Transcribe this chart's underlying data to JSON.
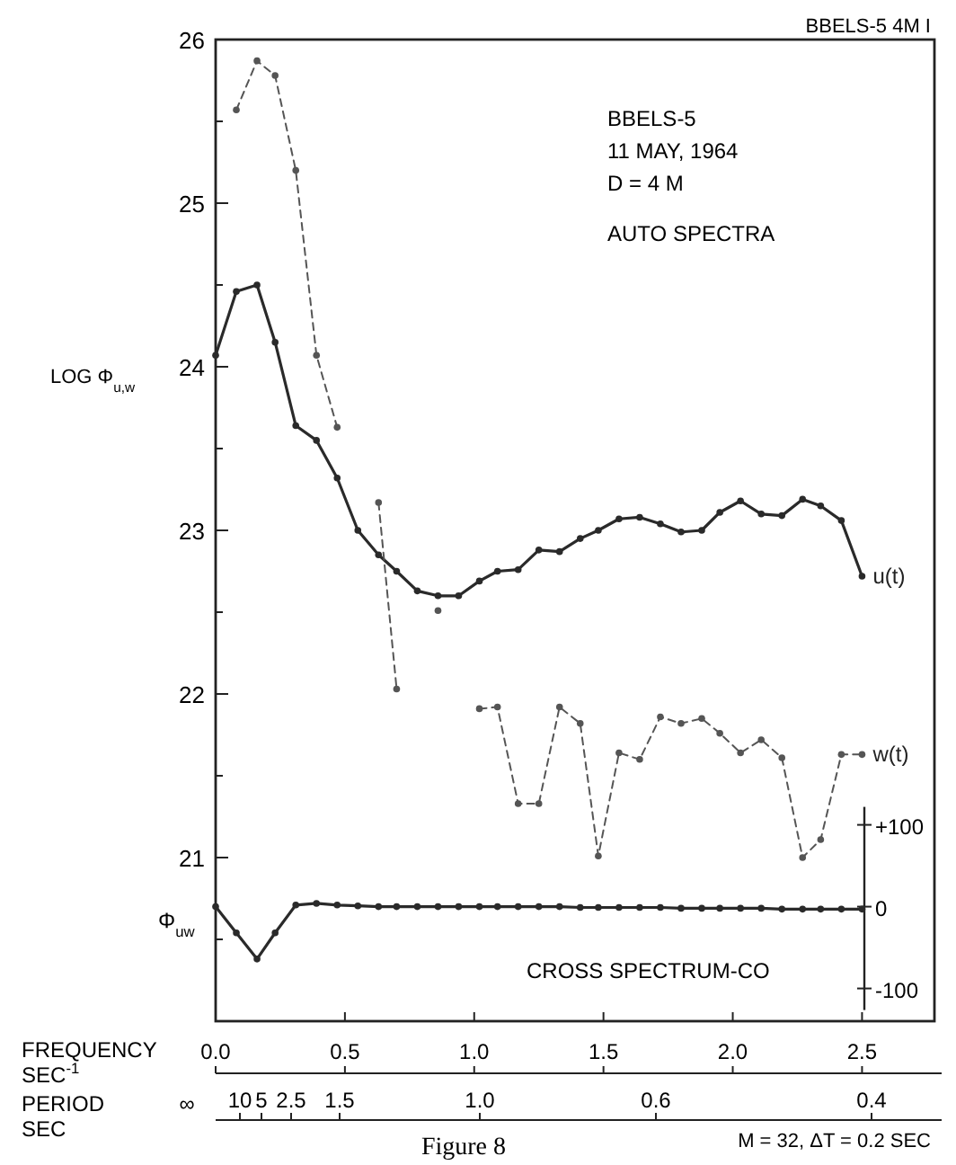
{
  "chart_data": {
    "type": "line",
    "ylabel": "LOG Φ$_{u,w}$",
    "xlabel": "FREQUENCY SEC$^{-1}$",
    "x2label": "PERIOD SEC",
    "x": [
      0,
      0.08,
      0.16,
      0.23,
      0.31,
      0.39,
      0.47,
      0.55,
      0.63,
      0.7,
      0.78,
      0.86,
      0.94,
      1.02,
      1.09,
      1.17,
      1.25,
      1.33,
      1.41,
      1.48,
      1.56,
      1.64,
      1.72,
      1.8,
      1.88,
      1.95,
      2.03,
      2.11,
      2.19,
      2.27,
      2.34,
      2.42,
      2.5
    ],
    "series": [
      {
        "name": "u(t)",
        "color": "#2a2a2a",
        "line_style": "solid",
        "values": [
          24.07,
          24.46,
          24.5,
          24.15,
          23.64,
          23.55,
          23.32,
          23.0,
          22.85,
          22.75,
          22.63,
          22.6,
          22.6,
          22.69,
          22.75,
          22.76,
          22.88,
          22.87,
          22.95,
          23.0,
          23.07,
          23.08,
          23.04,
          22.99,
          23.0,
          23.11,
          23.18,
          23.1,
          23.09,
          23.19,
          23.15,
          23.06,
          22.72
        ]
      },
      {
        "name": "w(t)",
        "color": "#555555",
        "line_style": "dashed",
        "values": [
          null,
          25.57,
          25.87,
          25.78,
          25.2,
          24.07,
          23.63,
          null,
          23.17,
          22.03,
          null,
          22.51,
          null,
          21.91,
          21.92,
          21.33,
          21.33,
          21.92,
          21.82,
          21.01,
          21.64,
          21.6,
          21.86,
          21.82,
          21.85,
          21.76,
          21.64,
          21.72,
          21.61,
          21.0,
          21.11,
          21.63,
          21.63
        ]
      },
      {
        "color": "#2a2a2a",
        "line_style": "solid",
        "axis": "y2",
        "values": [
          0,
          -32,
          -64,
          -32,
          2,
          4,
          2,
          1,
          0,
          0,
          0,
          0,
          0,
          0,
          0,
          0,
          0,
          0,
          -1,
          -1,
          -1,
          -1,
          -1,
          -2,
          -2,
          -2,
          -2,
          -2,
          -3,
          -3,
          -3,
          -3,
          -3
        ]
      }
    ],
    "xlim": [
      0,
      2.78
    ],
    "xticks": [
      {
        "value": 0,
        "label": "0.0"
      },
      0.5,
      {
        "value": 1,
        "label": "1.0"
      },
      1.5,
      {
        "value": 2,
        "label": "2.0"
      },
      2.5
    ],
    "ylim": [
      20,
      26
    ],
    "yticks": [
      {
        "value": 20.5,
        "label": null
      },
      21,
      {
        "value": 21.5,
        "label": null
      },
      22,
      {
        "value": 22.5,
        "label": null
      },
      23,
      {
        "value": 23.5,
        "label": null
      },
      24,
      {
        "value": 24.5,
        "label": null
      },
      25,
      {
        "value": 25.5,
        "label": null
      },
      26
    ],
    "y2lim": [
      -140,
      1060
    ],
    "y2ticks": [
      {
        "value": -100,
        "label": "-100"
      },
      0,
      {
        "value": 100,
        "label": "+100"
      }
    ],
    "grid": false,
    "marker": "circle",
    "annotations": [
      "BBELS-5 4M I",
      "BBELS-5",
      "11 MAY, 1964",
      "D = 4 M",
      "AUTO SPECTRA",
      "CROSS SPECTRUM-CO",
      "Figure 8",
      "M = 32, ΔT = 0.2 SEC",
      "∞",
      "10",
      "5",
      "2.5",
      "1.5",
      "1.0",
      "0.6",
      "0.4",
      "Φ$_{uw}$"
    ]
  }
}
